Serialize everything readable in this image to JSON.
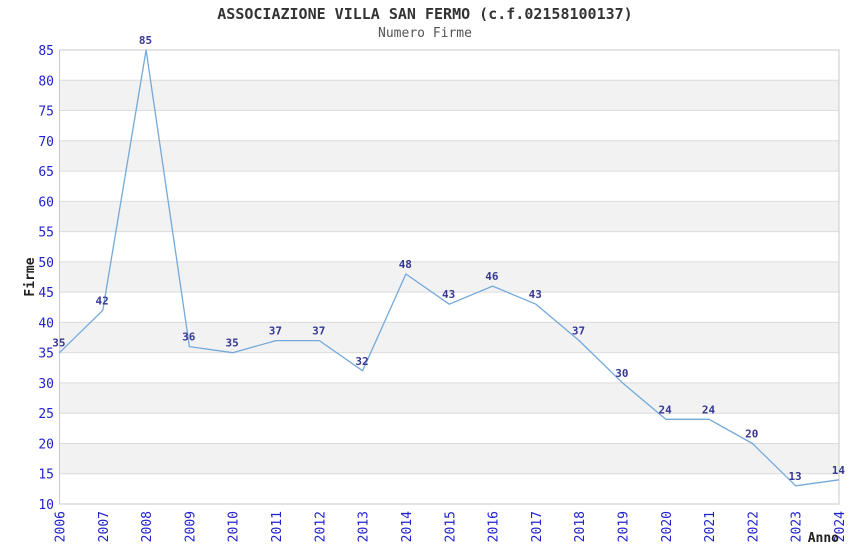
{
  "title": "ASSOCIAZIONE VILLA SAN FERMO (c.f.02158100137)",
  "subtitle": "Numero Firme",
  "chart_data": {
    "type": "line",
    "x": [
      2006,
      2007,
      2008,
      2009,
      2010,
      2011,
      2012,
      2013,
      2014,
      2015,
      2016,
      2017,
      2018,
      2019,
      2020,
      2021,
      2022,
      2023,
      2024
    ],
    "series": [
      {
        "name": "Numero Firme",
        "values": [
          35,
          42,
          85,
          36,
          35,
          37,
          37,
          32,
          48,
          43,
          46,
          43,
          37,
          30,
          24,
          24,
          20,
          13,
          14
        ]
      }
    ],
    "title": "ASSOCIAZIONE VILLA SAN FERMO (c.f.02158100137)",
    "subtitle": "Numero Firme",
    "xlabel": "Anno",
    "ylabel": "Firme",
    "ylim": [
      10,
      85
    ],
    "ytick_step": 5,
    "grid": true,
    "legend_position": "none",
    "point_labels_shown": true,
    "colors": {
      "line": "#74a9dc",
      "point_label": "#373794",
      "tick_label": "#2222cc",
      "band_gray": "#f2f2f2",
      "band_white": "#ffffff",
      "gridline": "#dcdcdc",
      "plot_border": "#c9c9c9",
      "title_text": "#333333",
      "subtitle_text": "#555555",
      "axis_title_text": "#222222"
    }
  }
}
